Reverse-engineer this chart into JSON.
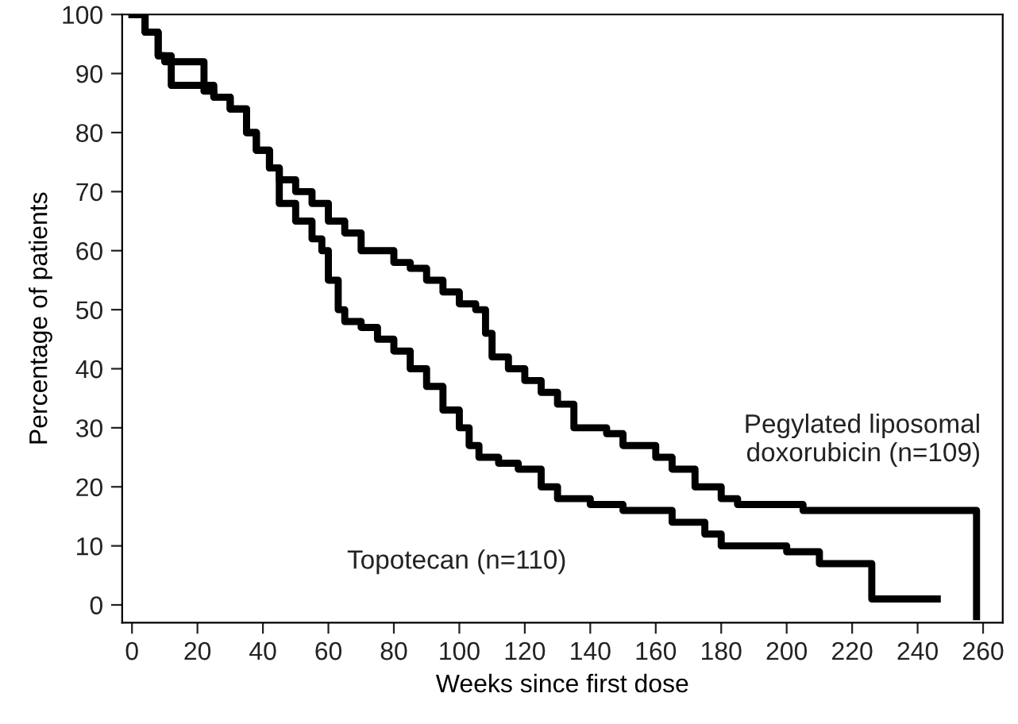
{
  "chart_data": {
    "type": "step",
    "xlabel": "Weeks since first dose",
    "ylabel": "Percentage of patients",
    "xlim": [
      -3,
      266
    ],
    "ylim": [
      -3,
      100
    ],
    "xticks": [
      0,
      20,
      40,
      60,
      80,
      100,
      120,
      140,
      160,
      180,
      200,
      220,
      240,
      260
    ],
    "yticks": [
      0,
      10,
      20,
      30,
      40,
      50,
      60,
      70,
      80,
      90,
      100
    ],
    "grid": false,
    "legend": false,
    "marker": "none",
    "line_style": "solid",
    "series": [
      {
        "color": "#000000",
        "x": [
          0,
          4,
          8,
          10,
          22,
          25,
          30,
          35,
          38,
          42,
          45,
          50,
          55,
          60,
          65,
          70,
          80,
          85,
          90,
          95,
          100,
          105,
          108,
          110,
          115,
          120,
          125,
          130,
          135,
          145,
          150,
          160,
          165,
          172,
          180,
          185,
          205,
          258,
          258
        ],
        "values": [
          100,
          97,
          93,
          92,
          88,
          86,
          84,
          80,
          77,
          74,
          72,
          70,
          68,
          65,
          63,
          60,
          58,
          57,
          55,
          53,
          51,
          50,
          46,
          42,
          40,
          38,
          36,
          34,
          30,
          29,
          27,
          25,
          23,
          20,
          18,
          17,
          16,
          16,
          -2
        ]
      },
      {
        "color": "#000000",
        "x": [
          0,
          4,
          8,
          12,
          22,
          25,
          30,
          35,
          38,
          42,
          45,
          50,
          55,
          58,
          60,
          63,
          65,
          70,
          75,
          80,
          85,
          90,
          95,
          100,
          103,
          106,
          112,
          118,
          125,
          130,
          140,
          150,
          165,
          175,
          180,
          200,
          210,
          226,
          246
        ],
        "values": [
          100,
          97,
          93,
          88,
          87,
          86,
          84,
          80,
          77,
          74,
          68,
          65,
          62,
          60,
          55,
          50,
          48,
          47,
          45,
          43,
          40,
          37,
          33,
          30,
          27,
          25,
          24,
          23,
          20,
          18,
          17,
          16,
          14,
          12,
          10,
          9,
          7,
          1,
          1
        ]
      }
    ],
    "annotations": [
      "Pegylated liposomal\ndoxorubicin (n=109)",
      "Topotecan (n=110)"
    ]
  }
}
